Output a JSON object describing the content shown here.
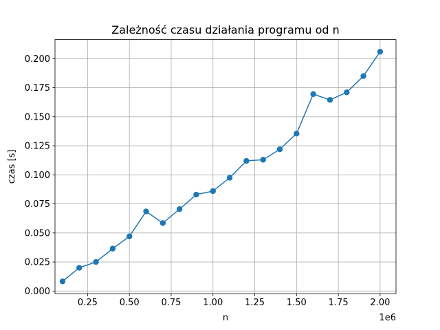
{
  "chart_data": {
    "type": "line",
    "title": "Zależność czasu działania programu od n",
    "xlabel": "n",
    "ylabel": "czas [s]",
    "x_offset_label": "1e6",
    "x_scale": 1000000,
    "xlim": [
      0.055,
      2.095
    ],
    "ylim": [
      -0.0023,
      0.2164
    ],
    "xticks": [
      0.25,
      0.5,
      0.75,
      1.0,
      1.25,
      1.5,
      1.75,
      2.0
    ],
    "xtick_labels": [
      "0.25",
      "0.50",
      "0.75",
      "1.00",
      "1.25",
      "1.50",
      "1.75",
      "2.00"
    ],
    "yticks": [
      0.0,
      0.025,
      0.05,
      0.075,
      0.1,
      0.125,
      0.15,
      0.175,
      0.2
    ],
    "ytick_labels": [
      "0.000",
      "0.025",
      "0.050",
      "0.075",
      "0.100",
      "0.125",
      "0.150",
      "0.175",
      "0.200"
    ],
    "grid": true,
    "color": "#1f77b4",
    "series": [
      {
        "x": [
          0.1,
          0.2,
          0.3,
          0.4,
          0.5,
          0.6,
          0.7,
          0.8,
          0.9,
          1.0,
          1.1,
          1.2,
          1.3,
          1.4,
          1.5,
          1.6,
          1.7,
          1.8,
          1.9,
          2.0
        ],
        "values": [
          0.0083,
          0.02,
          0.025,
          0.0365,
          0.047,
          0.0685,
          0.0585,
          0.0705,
          0.083,
          0.086,
          0.0975,
          0.112,
          0.113,
          0.122,
          0.1355,
          0.1695,
          0.1645,
          0.171,
          0.185,
          0.206
        ]
      }
    ]
  }
}
